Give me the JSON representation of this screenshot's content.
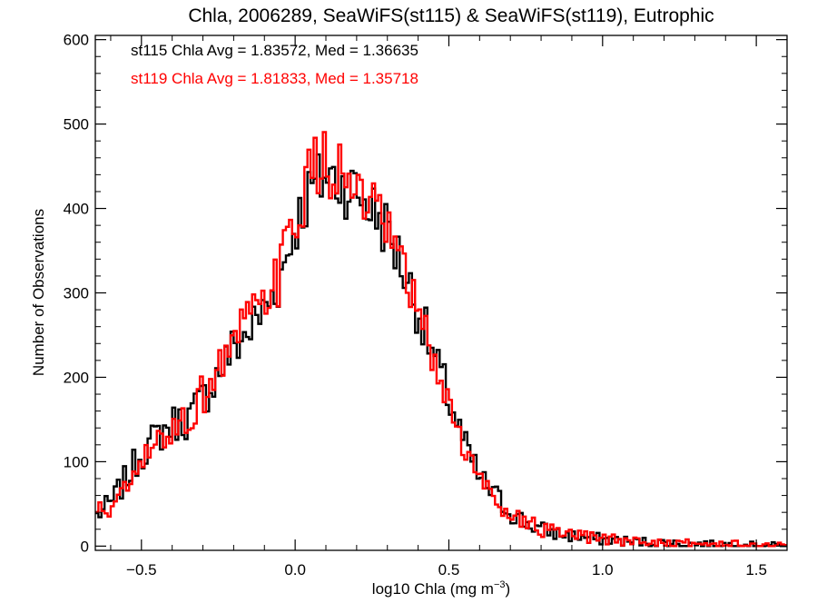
{
  "chart_data": {
    "type": "histogram-step",
    "title": "Chla, 2006289, SeaWiFS(st115) & SeaWiFS(st119), Eutrophic",
    "xlabel_main": "log10 Chla (mg m",
    "xlabel_sup": "−3",
    "xlabel_close": ")",
    "ylabel": "Number of Observations",
    "xlim": [
      -0.65,
      1.6
    ],
    "ylim": [
      -5,
      605
    ],
    "xticks": [
      -0.5,
      0.0,
      0.5,
      1.0,
      1.5
    ],
    "xtick_labels": [
      "−0.5",
      "0.0",
      "0.5",
      "1.0",
      "1.5"
    ],
    "yticks": [
      0,
      100,
      200,
      300,
      400,
      500,
      600
    ],
    "ytick_labels": [
      "0",
      "100",
      "200",
      "300",
      "400",
      "500",
      "600"
    ],
    "annotations": [
      {
        "text": "st115 Chla Avg = 1.83572, Med = 1.36635",
        "color": "#000000"
      },
      {
        "text": "st119 Chla Avg = 1.81833, Med = 1.35718",
        "color": "#ff0000"
      }
    ],
    "bin_width": 0.01,
    "series": [
      {
        "name": "st115",
        "color": "#000000",
        "x": [
          -0.65,
          -0.6,
          -0.55,
          -0.5,
          -0.45,
          -0.4,
          -0.35,
          -0.3,
          -0.25,
          -0.2,
          -0.15,
          -0.1,
          -0.05,
          0.0,
          0.05,
          0.1,
          0.15,
          0.2,
          0.25,
          0.3,
          0.35,
          0.4,
          0.45,
          0.5,
          0.55,
          0.6,
          0.65,
          0.7,
          0.75,
          0.8,
          0.85,
          0.9,
          0.95,
          1.0,
          1.05,
          1.1,
          1.15,
          1.2,
          1.25,
          1.3,
          1.35,
          1.4,
          1.45,
          1.5,
          1.55,
          1.6
        ],
        "values": [
          35,
          50,
          80,
          110,
          130,
          145,
          150,
          175,
          205,
          235,
          255,
          280,
          315,
          380,
          420,
          440,
          430,
          420,
          400,
          375,
          330,
          280,
          225,
          175,
          120,
          80,
          60,
          40,
          28,
          20,
          15,
          12,
          10,
          8,
          7,
          5,
          5,
          4,
          3,
          3,
          2,
          2,
          2,
          1,
          1,
          1
        ]
      },
      {
        "name": "st119",
        "color": "#ff0000",
        "x": [
          -0.65,
          -0.6,
          -0.55,
          -0.5,
          -0.45,
          -0.4,
          -0.35,
          -0.3,
          -0.25,
          -0.2,
          -0.15,
          -0.1,
          -0.05,
          0.0,
          0.05,
          0.1,
          0.15,
          0.2,
          0.25,
          0.3,
          0.35,
          0.4,
          0.45,
          0.5,
          0.55,
          0.6,
          0.65,
          0.7,
          0.75,
          0.8,
          0.85,
          0.9,
          0.95,
          1.0,
          1.05,
          1.1,
          1.15,
          1.2,
          1.25,
          1.3,
          1.35,
          1.4,
          1.45,
          1.5,
          1.55,
          1.6
        ],
        "values": [
          40,
          45,
          65,
          95,
          120,
          140,
          150,
          180,
          210,
          245,
          265,
          285,
          320,
          390,
          440,
          455,
          440,
          415,
          395,
          370,
          325,
          275,
          220,
          170,
          115,
          78,
          58,
          40,
          28,
          20,
          15,
          12,
          10,
          8,
          7,
          6,
          5,
          4,
          3,
          3,
          2,
          2,
          2,
          1,
          1,
          1
        ]
      }
    ]
  }
}
